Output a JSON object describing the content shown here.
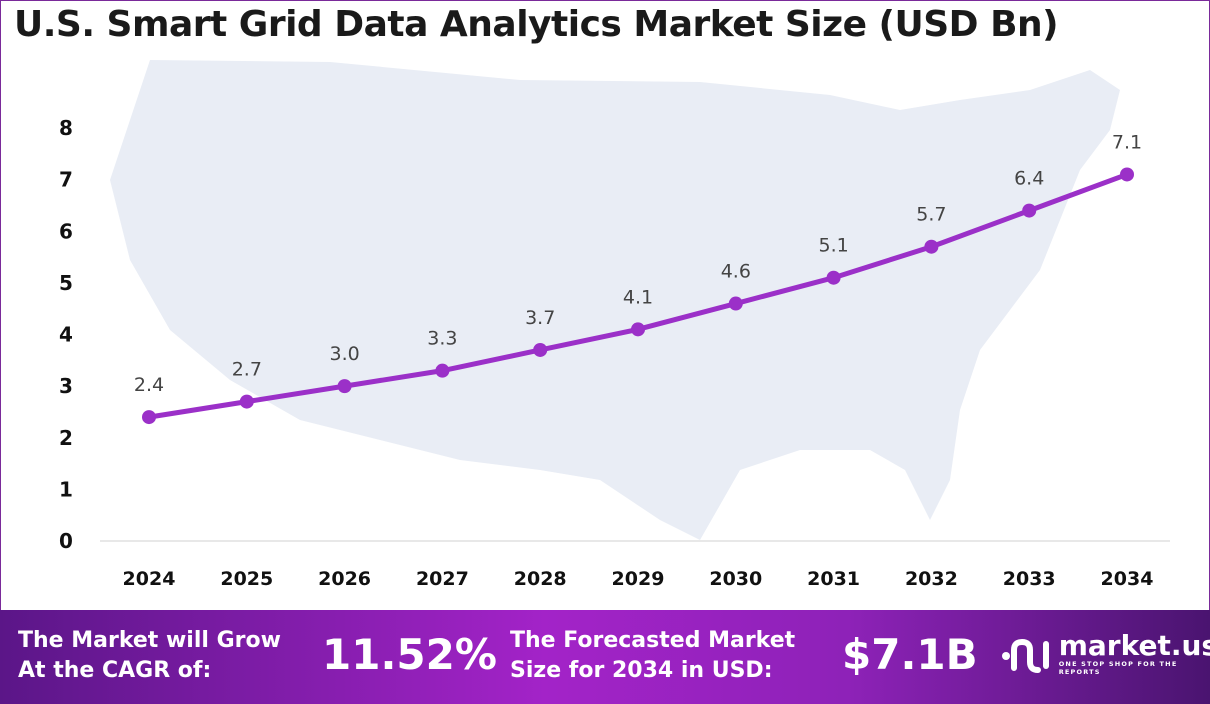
{
  "title": "U.S. Smart Grid Data Analytics Market Size (USD Bn)",
  "chart_data": {
    "type": "line",
    "title": "U.S. Smart Grid Data Analytics Market Size (USD Bn)",
    "categories": [
      "2024",
      "2025",
      "2026",
      "2027",
      "2028",
      "2029",
      "2030",
      "2031",
      "2032",
      "2033",
      "2034"
    ],
    "values": [
      2.4,
      2.7,
      3.0,
      3.3,
      3.7,
      4.1,
      4.6,
      5.1,
      5.7,
      6.4,
      7.1
    ],
    "data_labels": [
      "2.4",
      "2.7",
      "3.0",
      "3.3",
      "3.7",
      "4.1",
      "4.6",
      "5.1",
      "5.7",
      "6.4",
      "7.1"
    ],
    "yticks": [
      "0",
      "1",
      "2",
      "3",
      "4",
      "5",
      "6",
      "7",
      "8"
    ],
    "ylim": [
      0,
      8
    ],
    "xlabel": "",
    "ylabel": "",
    "grid": false,
    "line_color": "#9b30c8",
    "background": "US map silhouette"
  },
  "banner": {
    "cagr_label_line1": "The Market will Grow",
    "cagr_label_line2": "At the CAGR of:",
    "cagr_value": "11.52%",
    "forecast_label_line1": "The Forecasted Market",
    "forecast_label_line2": "Size for 2034 in USD:",
    "forecast_value": "$7.1B",
    "logo_name": "market.us",
    "logo_tagline": "ONE STOP SHOP FOR THE REPORTS"
  }
}
